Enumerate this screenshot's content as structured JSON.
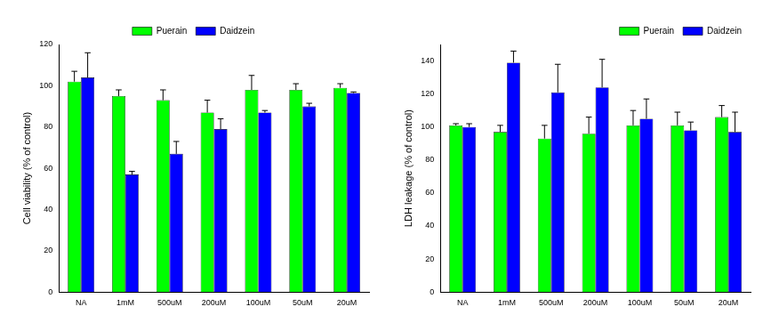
{
  "chart_data": [
    {
      "type": "bar",
      "y_label": "Cell viability (% of control)",
      "categories": [
        "NA",
        "1mM",
        "500uM",
        "200uM",
        "100uM",
        "50uM",
        "20uM"
      ],
      "series": [
        {
          "name": "Puerain",
          "color": "#00ff00",
          "values": [
            102,
            95,
            93,
            87,
            98,
            98,
            99
          ],
          "errors": [
            5,
            3,
            5,
            6,
            7,
            3,
            2
          ]
        },
        {
          "name": "Daidzein",
          "color": "#0000ff",
          "values": [
            104,
            57,
            67,
            79,
            87,
            90,
            96.5
          ],
          "errors": [
            12,
            1.5,
            6,
            5,
            1,
            1.5,
            0.5
          ]
        }
      ],
      "ylim": [
        0,
        120
      ],
      "yticks": [
        0,
        20,
        40,
        60,
        80,
        100,
        120
      ],
      "grid": false,
      "legend": "upper center"
    },
    {
      "type": "bar",
      "y_label": "LDH leakage (% of control)",
      "categories": [
        "NA",
        "1mM",
        "500uM",
        "200uM",
        "100uM",
        "50uM",
        "20uM"
      ],
      "series": [
        {
          "name": "Puerain",
          "color": "#00ff00",
          "values": [
            101,
            97,
            93,
            96,
            101,
            101,
            106
          ],
          "errors": [
            1,
            4,
            8,
            10,
            9,
            8,
            7
          ]
        },
        {
          "name": "Daidzein",
          "color": "#0000ff",
          "values": [
            100,
            139,
            121,
            124,
            105,
            98,
            97
          ],
          "errors": [
            2,
            7,
            17,
            17,
            12,
            5,
            12
          ]
        }
      ],
      "ylim": [
        0,
        150
      ],
      "yticks": [
        0,
        20,
        40,
        60,
        80,
        100,
        120,
        140
      ],
      "grid": false,
      "legend": "upper right"
    }
  ]
}
